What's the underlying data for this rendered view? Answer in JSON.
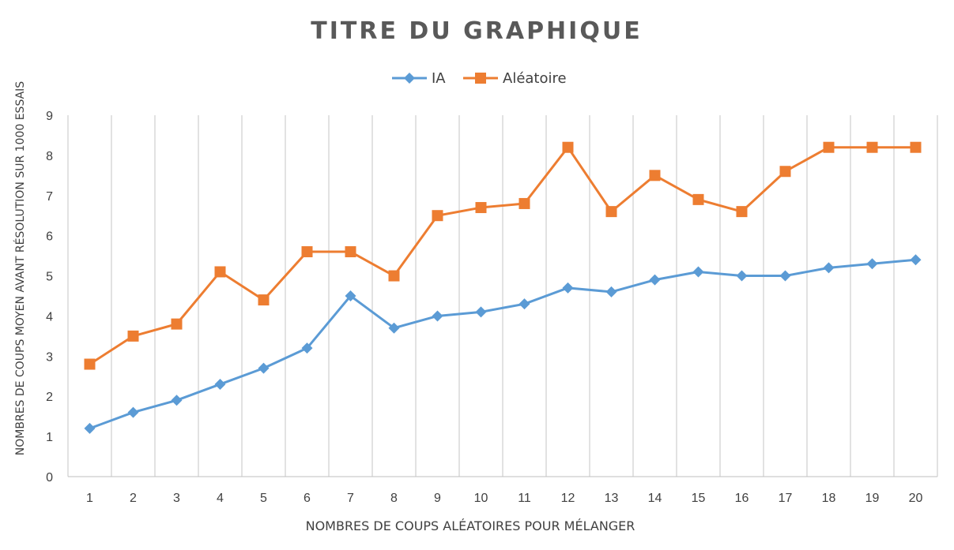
{
  "chart_data": {
    "type": "line",
    "title": "TITRE DU GRAPHIQUE",
    "xlabel": "NOMBRES DE COUPS ALÉATOIRES POUR MÉLANGER",
    "ylabel": "NOMBRES DE COUPS MOYEN AVANT RÉSOLUTION SUR 1000 ESSAIS",
    "categories": [
      "1",
      "2",
      "3",
      "4",
      "5",
      "6",
      "7",
      "8",
      "9",
      "10",
      "11",
      "12",
      "13",
      "14",
      "15",
      "16",
      "17",
      "18",
      "19",
      "20"
    ],
    "y_ticks": [
      "0",
      "1",
      "2",
      "3",
      "4",
      "5",
      "6",
      "7",
      "8",
      "9"
    ],
    "ylim": [
      0,
      9
    ],
    "grid": "vertical",
    "legend_position": "top",
    "series": [
      {
        "name": "IA",
        "color": "#5B9BD5",
        "marker": "diamond",
        "values": [
          1.2,
          1.6,
          1.9,
          2.3,
          2.7,
          3.2,
          4.5,
          3.7,
          4.0,
          4.1,
          4.3,
          4.7,
          4.6,
          4.9,
          5.1,
          5.0,
          5.0,
          5.2,
          5.3,
          5.4
        ]
      },
      {
        "name": "Aléatoire",
        "color": "#ED7D31",
        "marker": "square",
        "values": [
          2.8,
          3.5,
          3.8,
          5.1,
          4.4,
          5.6,
          5.6,
          5.0,
          6.5,
          6.7,
          6.8,
          8.2,
          6.6,
          7.5,
          6.9,
          6.6,
          7.6,
          8.2,
          8.2,
          8.2
        ]
      }
    ]
  }
}
